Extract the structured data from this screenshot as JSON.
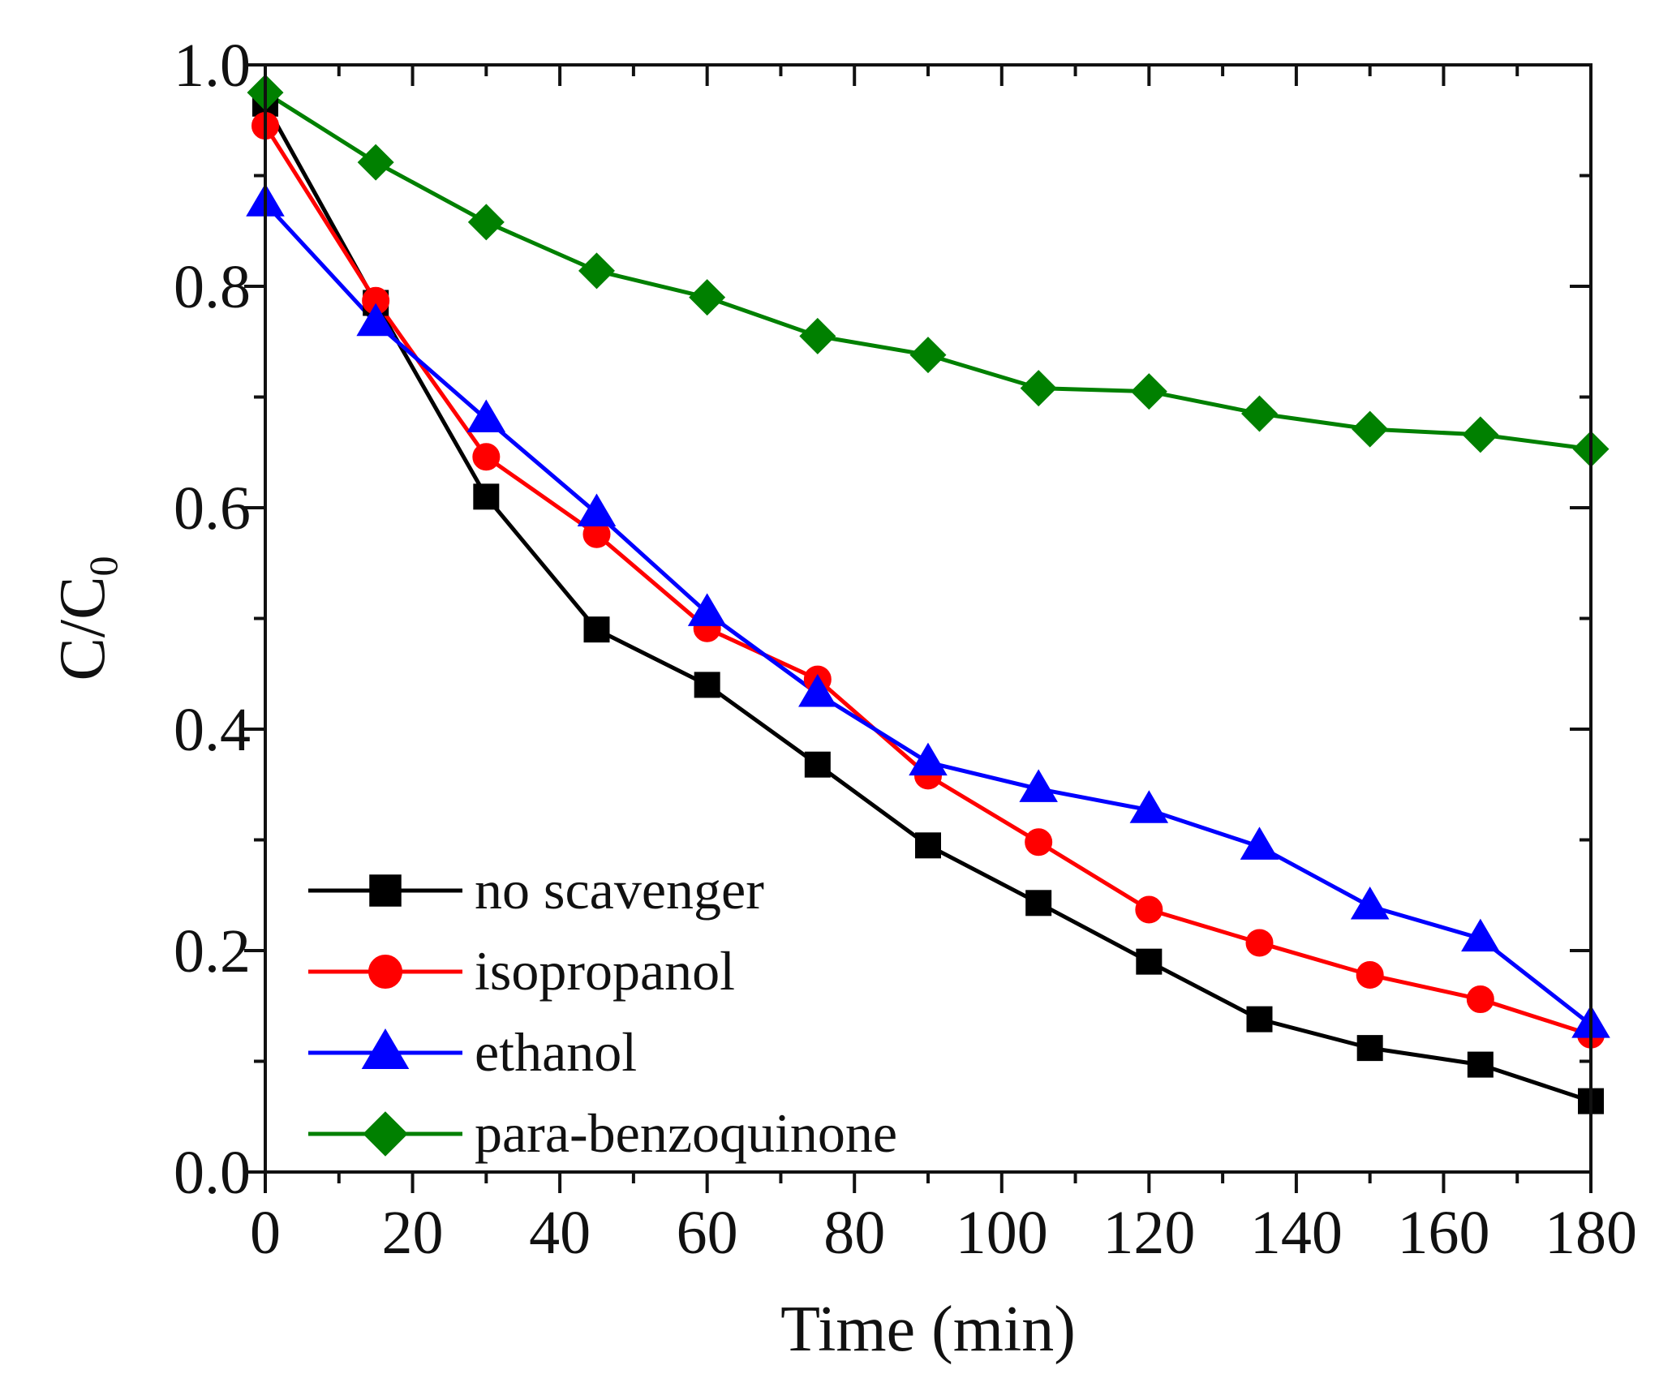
{
  "chart_data": {
    "type": "line",
    "title": "",
    "xlabel": "Time (min)",
    "ylabel_main": "C/C",
    "ylabel_sub": "0",
    "xlim": [
      0,
      180
    ],
    "ylim": [
      0.0,
      1.0
    ],
    "x_ticks": [
      "0",
      "20",
      "40",
      "60",
      "80",
      "100",
      "120",
      "140",
      "160",
      "180"
    ],
    "y_ticks": [
      "0.0",
      "0.2",
      "0.4",
      "0.6",
      "0.8",
      "1.0"
    ],
    "grid": false,
    "legend_position": "bottom-left",
    "x": [
      0,
      15,
      30,
      45,
      60,
      75,
      90,
      105,
      120,
      135,
      150,
      165,
      180
    ],
    "series": [
      {
        "name": "no scavenger",
        "marker": "square",
        "color": "#000000",
        "values": [
          0.965,
          0.785,
          0.61,
          0.49,
          0.44,
          0.368,
          0.295,
          0.243,
          0.19,
          0.138,
          0.112,
          0.097,
          0.064
        ]
      },
      {
        "name": "isopropanol",
        "marker": "circle",
        "color": "#ff0000",
        "values": [
          0.945,
          0.787,
          0.646,
          0.576,
          0.491,
          0.445,
          0.358,
          0.298,
          0.237,
          0.207,
          0.178,
          0.156,
          0.124
        ]
      },
      {
        "name": "ethanol",
        "marker": "triangle",
        "color": "#0000ff",
        "values": [
          0.875,
          0.767,
          0.68,
          0.595,
          0.505,
          0.432,
          0.37,
          0.346,
          0.327,
          0.294,
          0.24,
          0.211,
          0.133
        ]
      },
      {
        "name": "para-benzoquinone",
        "marker": "diamond",
        "color": "#008000",
        "values": [
          0.975,
          0.912,
          0.858,
          0.814,
          0.79,
          0.755,
          0.738,
          0.708,
          0.705,
          0.685,
          0.671,
          0.666,
          0.653
        ]
      }
    ]
  }
}
